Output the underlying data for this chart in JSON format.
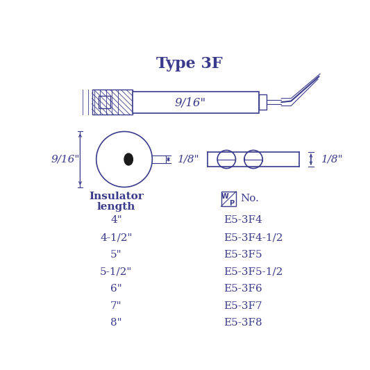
{
  "title": "Type 3F",
  "title_fontsize": 16,
  "text_color": "#3a3a8c",
  "bg_color": "#ffffff",
  "insulator_header_line1": "Insulator",
  "insulator_header_line2": "length",
  "wp_label": "No.",
  "lengths": [
    "4\"",
    "4-1/2\"",
    "5\"",
    "5-1/2\"",
    "6\"",
    "7\"",
    "8\""
  ],
  "part_numbers": [
    "E5-3F4",
    "E5-3F4-1/2",
    "E5-3F5",
    "E5-3F5-1/2",
    "E5-3F6",
    "E5-3F7",
    "E5-3F8"
  ],
  "dim_916": "9/16\"",
  "dim_18a": "1/8\"",
  "dim_18b": "1/8\""
}
